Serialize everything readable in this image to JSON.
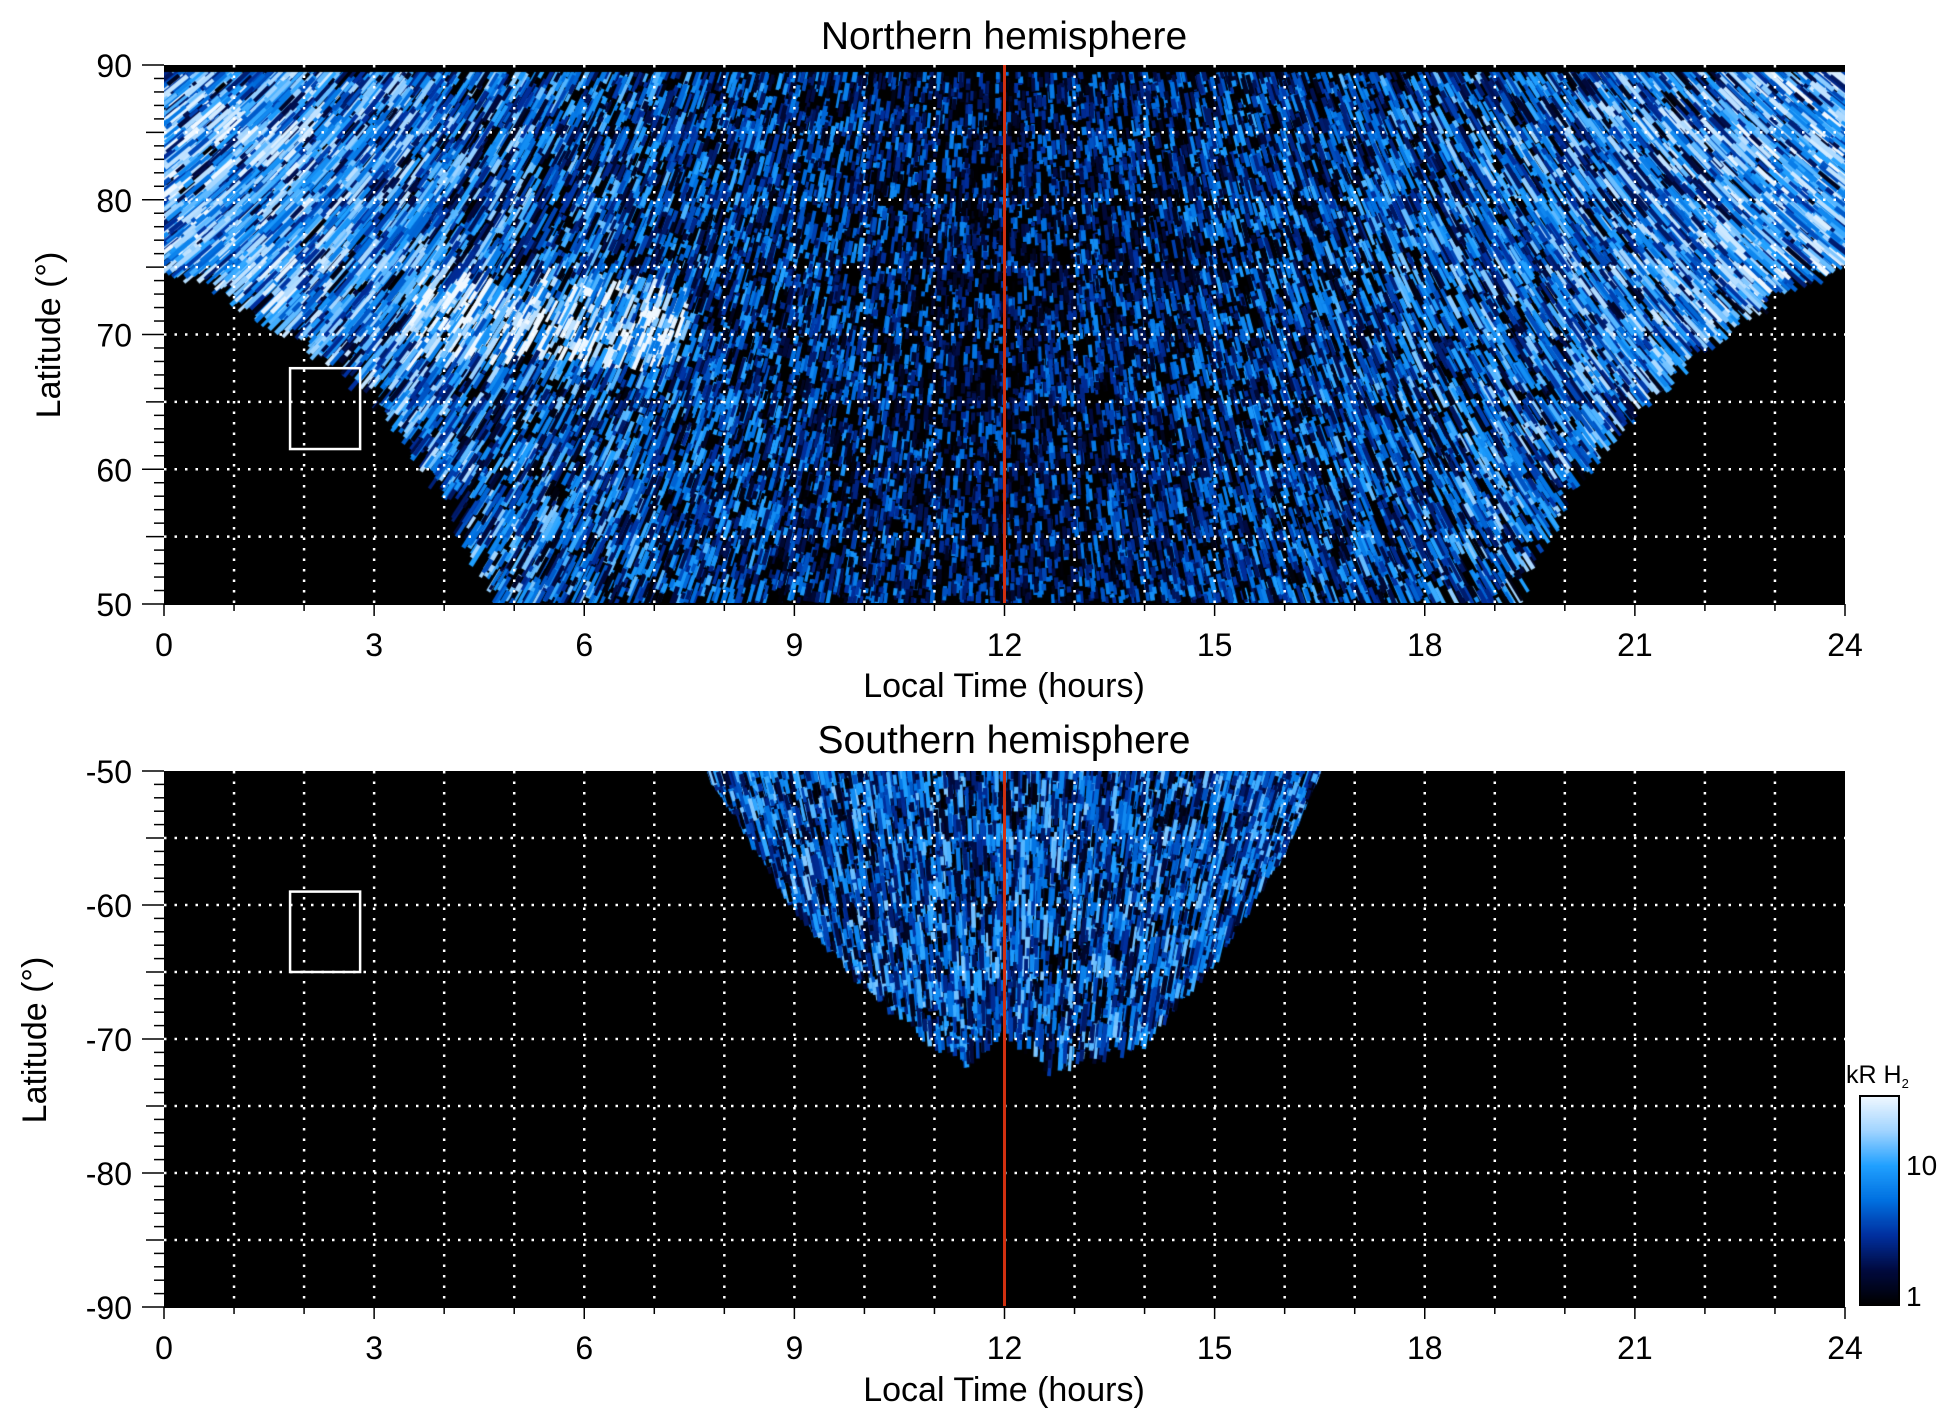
{
  "chart_data": [
    {
      "type": "heatmap",
      "title": "Northern hemisphere",
      "xlabel": "Local Time (hours)",
      "ylabel": "Latitude (°)",
      "xlim": [
        0,
        24
      ],
      "ylim": [
        50,
        90
      ],
      "xticks": [
        "0",
        "3",
        "6",
        "9",
        "12",
        "15",
        "18",
        "21",
        "24"
      ],
      "yticks": [
        "50",
        "60",
        "70",
        "80",
        "90"
      ],
      "grid": true,
      "marker_line_lt": 12,
      "box": {
        "lt": [
          1.8,
          2.8
        ],
        "lat": [
          61.5,
          67.5
        ]
      },
      "emission_boundary": {
        "lt": [
          0,
          1,
          2,
          3,
          4,
          4.8,
          19.3,
          20,
          21,
          22,
          23,
          24
        ],
        "lat": [
          76,
          73.5,
          70,
          66,
          59,
          50,
          50,
          58,
          65,
          70,
          73.5,
          76
        ]
      },
      "seed": 7
    },
    {
      "type": "heatmap",
      "title": "Southern hemisphere",
      "xlabel": "Local Time (hours)",
      "ylabel": "Latitude (°)",
      "xlim": [
        0,
        24
      ],
      "ylim": [
        -90,
        -50
      ],
      "xticks": [
        "0",
        "3",
        "6",
        "9",
        "12",
        "15",
        "18",
        "21",
        "24"
      ],
      "yticks": [
        "-90",
        "-80",
        "-70",
        "-60",
        "-50"
      ],
      "grid": true,
      "marker_line_lt": 12,
      "box": {
        "lt": [
          1.8,
          2.8
        ],
        "lat": [
          -65,
          -59
        ]
      },
      "emission_boundary": {
        "lt": [
          7.8,
          9,
          10,
          11,
          11.5,
          12,
          12.7,
          14,
          15,
          16,
          16.5
        ],
        "lat": [
          -50,
          -60,
          -66,
          -70,
          -71.5,
          -69,
          -72,
          -70,
          -64,
          -56,
          -50
        ]
      },
      "seed": 13
    }
  ],
  "colorbar": {
    "label": "kR H",
    "label_sub": "2",
    "scale": "log",
    "range": [
      1,
      25
    ],
    "ticks": [
      "1",
      "10"
    ],
    "colors": [
      "#000000",
      "#000a40",
      "#0030a0",
      "#0070e0",
      "#20a0ff",
      "#a0d4ff",
      "#f0f8ff"
    ]
  },
  "colors": {
    "marker_line": "#d03010",
    "grid": "#ffffff",
    "background": "#000000"
  }
}
